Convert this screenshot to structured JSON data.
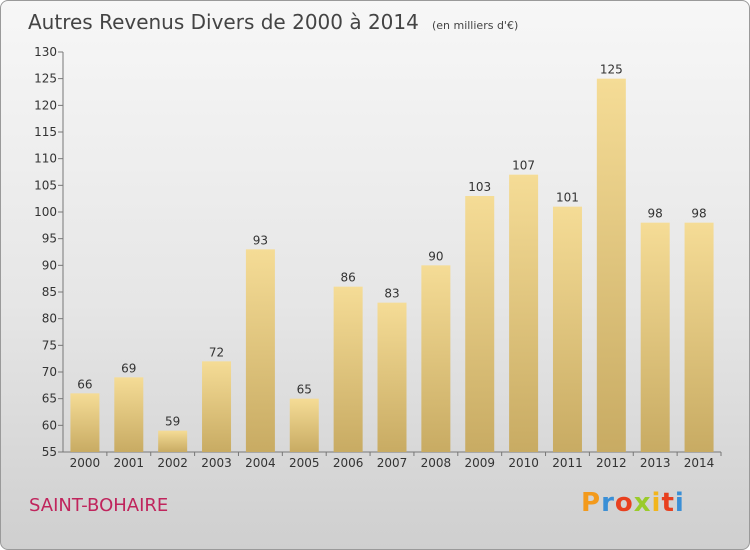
{
  "title": "Autres Revenus Divers de 2000 à 2014",
  "unit": "(en milliers d'€)",
  "city": "SAINT-BOHAIRE",
  "logo": {
    "text": "Proxiti",
    "letters": [
      {
        "char": "P",
        "color": "#f39a1c"
      },
      {
        "char": "r",
        "color": "#3a8fd6"
      },
      {
        "char": "o",
        "color": "#e8401f"
      },
      {
        "char": "x",
        "color": "#9acb2a"
      },
      {
        "char": "i",
        "color": "#f2b51c"
      },
      {
        "char": "t",
        "color": "#e8401f"
      },
      {
        "char": "i",
        "color": "#3a8fd6"
      }
    ]
  },
  "chart_data": {
    "type": "bar",
    "title": "Autres Revenus Divers de 2000 à 2014",
    "categories": [
      "2000",
      "2001",
      "2002",
      "2003",
      "2004",
      "2005",
      "2006",
      "2007",
      "2008",
      "2009",
      "2010",
      "2011",
      "2012",
      "2013",
      "2014"
    ],
    "values": [
      66,
      69,
      59,
      72,
      93,
      65,
      86,
      83,
      90,
      103,
      107,
      101,
      125,
      98,
      98
    ],
    "ylim": [
      55,
      130
    ],
    "yticks": [
      55,
      60,
      65,
      70,
      75,
      80,
      85,
      90,
      95,
      100,
      105,
      110,
      115,
      120,
      125,
      130
    ],
    "grid": false,
    "legend": "none",
    "bar_color_top": "#f5dc96",
    "bar_color_bottom": "#c8ab63"
  }
}
